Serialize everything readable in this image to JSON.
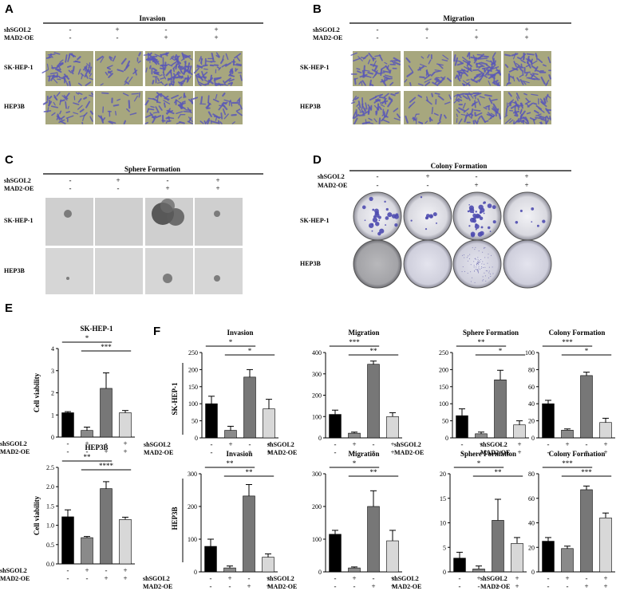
{
  "panel_labels": [
    "A",
    "B",
    "C",
    "D",
    "E",
    "F"
  ],
  "row_labels": {
    "sgol": "shSGOL2",
    "mad": "MAD2-OE"
  },
  "signs": {
    "sgol": [
      "-",
      "+",
      "-",
      "+"
    ],
    "mad": [
      "-",
      "-",
      "+",
      "+"
    ]
  },
  "cell_lines": [
    "SK-HEP-1",
    "HEP3B"
  ],
  "image_panels": [
    {
      "id": "A",
      "title": "Invasion",
      "kind": "transwell"
    },
    {
      "id": "B",
      "title": "Migration",
      "kind": "transwell"
    },
    {
      "id": "C",
      "title": "Sphere Formation",
      "kind": "sphere"
    },
    {
      "id": "D",
      "title": "Colony Formation",
      "kind": "colony"
    }
  ],
  "colors": {
    "bar": [
      "#000000",
      "#8a8a8a",
      "#777777",
      "#d8d8d8"
    ],
    "stain": "#5a58b8",
    "well": "#a7a77e"
  },
  "chart_data": [
    {
      "type": "bar",
      "panel": "E",
      "title": "SK-HEP-1",
      "ylabel": "Cell viability",
      "ylim": [
        0,
        4
      ],
      "yticks": [
        "0",
        "1",
        "2",
        "3",
        "4"
      ],
      "values": [
        1.1,
        0.3,
        2.2,
        1.1
      ],
      "errors": [
        0.05,
        0.15,
        0.7,
        0.1
      ],
      "comparisons": [
        {
          "from": 0,
          "to": 2,
          "level": "*"
        },
        {
          "from": 1,
          "to": 3,
          "level": "***"
        }
      ]
    },
    {
      "type": "bar",
      "panel": "E",
      "title": "HEP3B",
      "ylabel": "Cell viability",
      "ylim": [
        0,
        2.5
      ],
      "yticks": [
        "0.0",
        "0.5",
        "1.0",
        "1.5",
        "2.0",
        "2.5"
      ],
      "values": [
        1.22,
        0.68,
        1.95,
        1.15
      ],
      "errors": [
        0.18,
        0.03,
        0.18,
        0.06
      ],
      "comparisons": [
        {
          "from": 0,
          "to": 2,
          "level": "**"
        },
        {
          "from": 1,
          "to": 3,
          "level": "****"
        }
      ]
    },
    {
      "type": "bar",
      "panel": "F",
      "cell_line": "SK-HEP-1",
      "title": "Invasion",
      "ylim": [
        0,
        250
      ],
      "yticks": [
        "0",
        "50",
        "100",
        "150",
        "200",
        "250"
      ],
      "values": [
        100,
        22,
        178,
        85
      ],
      "errors": [
        22,
        12,
        22,
        28
      ],
      "comparisons": [
        {
          "from": 0,
          "to": 2,
          "level": "*"
        },
        {
          "from": 1,
          "to": 3,
          "level": "*"
        }
      ]
    },
    {
      "type": "bar",
      "panel": "F",
      "cell_line": "SK-HEP-1",
      "title": "Migration",
      "ylim": [
        0,
        400
      ],
      "yticks": [
        "0",
        "100",
        "200",
        "300",
        "400"
      ],
      "values": [
        110,
        22,
        345,
        100
      ],
      "errors": [
        20,
        5,
        15,
        18
      ],
      "comparisons": [
        {
          "from": 0,
          "to": 2,
          "level": "***"
        },
        {
          "from": 1,
          "to": 3,
          "level": "**"
        }
      ]
    },
    {
      "type": "bar",
      "panel": "F",
      "cell_line": "SK-HEP-1",
      "title": "Sphere Formation",
      "ylim": [
        0,
        250
      ],
      "yticks": [
        "0",
        "50",
        "100",
        "150",
        "200",
        "250"
      ],
      "values": [
        65,
        12,
        170,
        38
      ],
      "errors": [
        20,
        5,
        28,
        12
      ],
      "comparisons": [
        {
          "from": 0,
          "to": 2,
          "level": "**"
        },
        {
          "from": 1,
          "to": 3,
          "level": "*"
        }
      ]
    },
    {
      "type": "bar",
      "panel": "F",
      "cell_line": "SK-HEP-1",
      "title": "Colony Formation",
      "ylim": [
        0,
        100
      ],
      "yticks": [
        "0",
        "20",
        "40",
        "60",
        "80",
        "100"
      ],
      "values": [
        40,
        9,
        73,
        18
      ],
      "errors": [
        4,
        1.5,
        4,
        5
      ],
      "comparisons": [
        {
          "from": 0,
          "to": 2,
          "level": "***"
        },
        {
          "from": 1,
          "to": 3,
          "level": "*"
        }
      ]
    },
    {
      "type": "bar",
      "panel": "F",
      "cell_line": "HEP3B",
      "title": "Invasion",
      "ylim": [
        0,
        300
      ],
      "yticks": [
        "0",
        "100",
        "200",
        "300"
      ],
      "values": [
        78,
        12,
        232,
        45
      ],
      "errors": [
        22,
        6,
        35,
        10
      ],
      "comparisons": [
        {
          "from": 0,
          "to": 2,
          "level": "**"
        },
        {
          "from": 1,
          "to": 3,
          "level": "**"
        }
      ]
    },
    {
      "type": "bar",
      "panel": "F",
      "cell_line": "HEP3B",
      "title": "Migration",
      "ylim": [
        0,
        300
      ],
      "yticks": [
        "0",
        "100",
        "200",
        "300"
      ],
      "values": [
        115,
        12,
        200,
        95
      ],
      "errors": [
        12,
        3,
        48,
        32
      ],
      "comparisons": [
        {
          "from": 0,
          "to": 2,
          "level": "*"
        },
        {
          "from": 1,
          "to": 3,
          "level": "**"
        }
      ]
    },
    {
      "type": "bar",
      "panel": "F",
      "cell_line": "HEP3B",
      "title": "Sphere Formation",
      "ylim": [
        0,
        20
      ],
      "yticks": [
        "0",
        "5",
        "10",
        "15",
        "20"
      ],
      "values": [
        2.8,
        0.6,
        10.5,
        5.8
      ],
      "errors": [
        1.2,
        0.6,
        4.3,
        1.2
      ],
      "comparisons": [
        {
          "from": 0,
          "to": 2,
          "level": "*"
        },
        {
          "from": 1,
          "to": 3,
          "level": "**"
        }
      ]
    },
    {
      "type": "bar",
      "panel": "F",
      "cell_line": "HEP3B",
      "title": "Colony Formation",
      "ylim": [
        0,
        80
      ],
      "yticks": [
        "0",
        "20",
        "40",
        "60",
        "80"
      ],
      "values": [
        25,
        19,
        67,
        44
      ],
      "errors": [
        3,
        2,
        3,
        4
      ],
      "comparisons": [
        {
          "from": 0,
          "to": 2,
          "level": "***"
        },
        {
          "from": 1,
          "to": 3,
          "level": "***"
        }
      ]
    }
  ]
}
